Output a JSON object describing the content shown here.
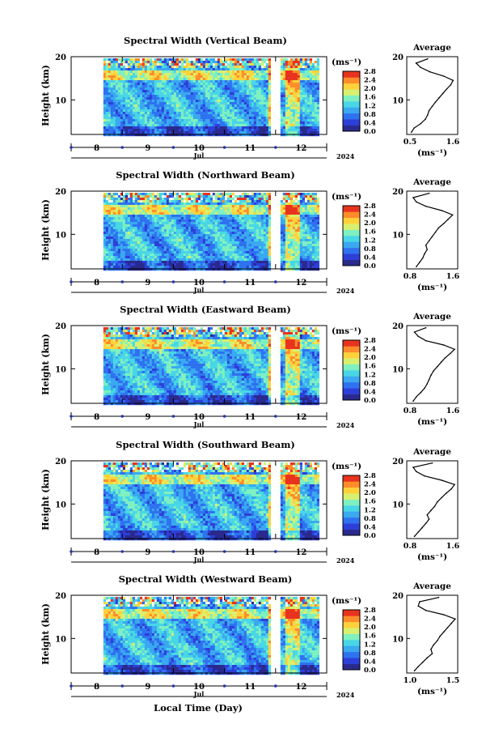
{
  "figure": {
    "footer_xlabel": "Local Time (Day)",
    "year": "2024",
    "month": "Jul",
    "xticks": [
      "8",
      "9",
      "10",
      "11",
      "12"
    ],
    "cbar_unit": "(ms⁻¹)",
    "cbar_ticks": [
      "0.0",
      "0.4",
      "0.8",
      "1.2",
      "1.6",
      "2.0",
      "2.4",
      "2.8"
    ],
    "avg_title": "Average",
    "avg_unit": "(ms⁻¹)",
    "ylabel": "Height (km)",
    "colormap": [
      "#2a2a8e",
      "#2c3fd8",
      "#2f72f0",
      "#3aa9f0",
      "#49d6e6",
      "#7ff0c0",
      "#d8f070",
      "#ffd23c",
      "#ff8c2a",
      "#e8331e"
    ]
  },
  "chart_data": [
    {
      "type": "heatmap",
      "title": "Spectral Width (Vertical Beam)",
      "ylabel": "Height (km)",
      "ylim": [
        2,
        20
      ],
      "yticks": [
        "10",
        "20"
      ],
      "xlabel": "Jul",
      "xlim": [
        7.5,
        12.5
      ],
      "data_x_range": [
        8.13,
        12.33
      ],
      "gap": [
        11.45,
        11.59
      ],
      "colorbar": {
        "unit": "(ms⁻¹)",
        "range": [
          0.0,
          2.8
        ]
      },
      "average": {
        "title": "Average",
        "xlim": [
          0.5,
          1.6
        ],
        "xticks": [
          "0.5",
          "1.6"
        ],
        "xlabel": "(ms⁻¹)",
        "height_km": [
          2.5,
          3.5,
          4.5,
          5.5,
          6.5,
          7.5,
          8.5,
          9.5,
          10.5,
          11.5,
          12.5,
          13.5,
          14.5,
          15.5,
          16.5,
          17.5,
          18.5,
          19.5
        ],
        "value": [
          0.6,
          0.66,
          0.8,
          0.9,
          0.95,
          0.98,
          1.05,
          1.12,
          1.2,
          1.28,
          1.36,
          1.45,
          1.5,
          1.3,
          1.0,
          0.8,
          0.7,
          0.95
        ]
      }
    },
    {
      "type": "heatmap",
      "title": "Spectral Width (Northward Beam)",
      "ylabel": "Height (km)",
      "ylim": [
        2,
        20
      ],
      "yticks": [
        "10",
        "20"
      ],
      "xlabel": "Jul",
      "xlim": [
        7.5,
        12.5
      ],
      "data_x_range": [
        8.13,
        12.33
      ],
      "gap": [
        11.45,
        11.59
      ],
      "colorbar": {
        "unit": "(ms⁻¹)",
        "range": [
          0.0,
          2.8
        ]
      },
      "average": {
        "title": "Average",
        "xlim": [
          0.8,
          1.6
        ],
        "xticks": [
          "0.8",
          "1.6"
        ],
        "xlabel": "(ms⁻¹)",
        "height_km": [
          2.5,
          3.5,
          4.5,
          5.5,
          6.5,
          7.5,
          8.5,
          9.5,
          10.5,
          11.5,
          12.5,
          13.5,
          14.5,
          15.5,
          16.5,
          17.5,
          18.5,
          19.5
        ],
        "value": [
          0.95,
          1.0,
          1.05,
          1.08,
          1.12,
          1.1,
          1.15,
          1.2,
          1.25,
          1.3,
          1.38,
          1.45,
          1.52,
          1.35,
          1.1,
          0.95,
          0.9,
          1.15
        ]
      }
    },
    {
      "type": "heatmap",
      "title": "Spectral Width (Eastward Beam)",
      "ylabel": "Height (km)",
      "ylim": [
        2,
        20
      ],
      "yticks": [
        "10",
        "20"
      ],
      "xlabel": "Jul",
      "xlim": [
        7.5,
        12.5
      ],
      "data_x_range": [
        8.13,
        12.33
      ],
      "gap": [
        11.45,
        11.59
      ],
      "colorbar": {
        "unit": "(ms⁻¹)",
        "range": [
          0.0,
          2.8
        ]
      },
      "average": {
        "title": "Average",
        "xlim": [
          0.8,
          1.6
        ],
        "xticks": [
          "0.8",
          "1.6"
        ],
        "xlabel": "(ms⁻¹)",
        "height_km": [
          2.5,
          3.5,
          4.5,
          5.5,
          6.5,
          7.5,
          8.5,
          9.5,
          10.5,
          11.5,
          12.5,
          13.5,
          14.5,
          15.5,
          16.5,
          17.5,
          18.5,
          19.5
        ],
        "value": [
          0.9,
          0.95,
          1.02,
          1.08,
          1.12,
          1.15,
          1.18,
          1.22,
          1.28,
          1.34,
          1.4,
          1.48,
          1.55,
          1.38,
          1.1,
          0.98,
          0.92,
          1.1
        ]
      }
    },
    {
      "type": "heatmap",
      "title": "Spectral Width (Southward Beam)",
      "ylabel": "Height (km)",
      "ylim": [
        2,
        20
      ],
      "yticks": [
        "10",
        "20"
      ],
      "xlabel": "Jul",
      "xlim": [
        7.5,
        12.5
      ],
      "data_x_range": [
        8.13,
        12.33
      ],
      "gap": [
        11.45,
        11.59
      ],
      "colorbar": {
        "unit": "(ms⁻¹)",
        "range": [
          0.0,
          2.8
        ]
      },
      "average": {
        "title": "Average",
        "xlim": [
          0.8,
          1.6
        ],
        "xticks": [
          "0.8",
          "1.6"
        ],
        "xlabel": "(ms⁻¹)",
        "height_km": [
          2.5,
          3.5,
          4.5,
          5.5,
          6.5,
          7.5,
          8.5,
          9.5,
          10.5,
          11.5,
          12.5,
          13.5,
          14.5,
          15.5,
          16.5,
          17.5,
          18.5,
          19.5
        ],
        "value": [
          0.92,
          0.98,
          1.04,
          1.1,
          1.15,
          1.12,
          1.18,
          1.24,
          1.28,
          1.35,
          1.42,
          1.5,
          1.55,
          1.35,
          1.08,
          0.95,
          0.9,
          1.2
        ]
      }
    },
    {
      "type": "heatmap",
      "title": "Spectral Width (Westward Beam)",
      "ylabel": "Height (km)",
      "ylim": [
        2,
        20
      ],
      "yticks": [
        "10",
        "20"
      ],
      "xlabel": "Jul",
      "xlim": [
        7.5,
        12.5
      ],
      "data_x_range": [
        8.13,
        12.33
      ],
      "gap": [
        11.45,
        11.59
      ],
      "colorbar": {
        "unit": "(ms⁻¹)",
        "range": [
          0.0,
          2.8
        ]
      },
      "average": {
        "title": "Average",
        "xlim": [
          0.8,
          1.6
        ],
        "xticks": [
          "1.0",
          "1.5"
        ],
        "xlabel": "(ms⁻¹)",
        "height_km": [
          2.5,
          3.5,
          4.5,
          5.5,
          6.5,
          7.5,
          8.5,
          9.5,
          10.5,
          11.5,
          12.5,
          13.5,
          14.5,
          15.5,
          16.5,
          17.5,
          18.5,
          19.5
        ],
        "value": [
          0.92,
          0.98,
          1.05,
          1.12,
          1.2,
          1.18,
          1.22,
          1.28,
          1.32,
          1.38,
          1.44,
          1.5,
          1.56,
          1.38,
          1.1,
          0.98,
          1.0,
          1.3
        ]
      }
    }
  ]
}
